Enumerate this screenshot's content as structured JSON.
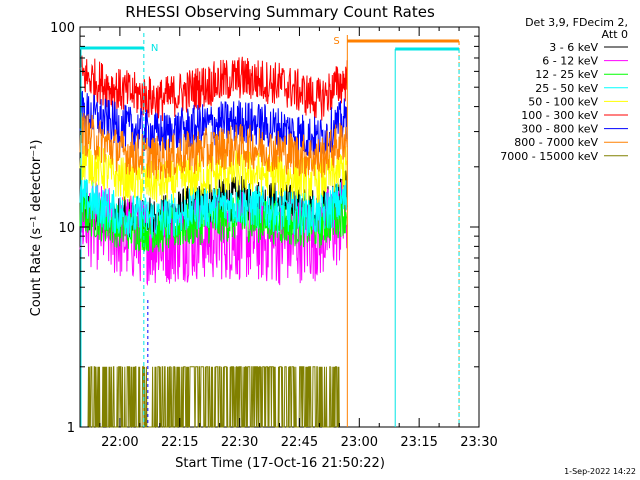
{
  "chart_data": {
    "type": "line",
    "title": "RHESSI Observing Summary Count Rates",
    "xlabel": "Start Time (17-Oct-16 21:50:22)",
    "ylabel": "Count Rate (s⁻¹ detector⁻¹)",
    "y_scale": "log",
    "ylim": [
      1,
      100
    ],
    "xlim": [
      "21:50",
      "23:30"
    ],
    "x_ticks": [
      "22:00",
      "22:15",
      "22:30",
      "22:45",
      "23:00",
      "23:15",
      "23:30"
    ],
    "y_ticks": [
      "1",
      "10",
      "100"
    ],
    "legend_header": [
      "Det 3,9, FDecim 2,",
      "Att 0"
    ],
    "legend_position": "right",
    "annotations": [
      "N",
      "S"
    ],
    "markers": {
      "N": {
        "start": "21:50",
        "end": "22:06",
        "color": "#00e5e5"
      },
      "S_eclipse_line": {
        "time": "22:57",
        "color": "#ff8000"
      },
      "S_bar": {
        "start": "22:57",
        "end": "23:25",
        "color": "#ff8000"
      },
      "N2": {
        "start": "23:09",
        "end": "23:25",
        "color": "#00e5e5"
      }
    },
    "series": [
      {
        "name": "3 - 6 keV",
        "color": "#000000",
        "x": [
          "21:50",
          "22:00",
          "22:10",
          "22:20",
          "22:30",
          "22:40",
          "22:50",
          "22:57"
        ],
        "values": [
          12,
          11,
          11,
          13,
          14,
          13,
          12,
          15
        ]
      },
      {
        "name": "6 - 12 keV",
        "color": "#ff00ff",
        "x": [
          "21:50",
          "22:00",
          "22:10",
          "22:20",
          "22:30",
          "22:40",
          "22:50",
          "22:57"
        ],
        "values": [
          11,
          9,
          8.5,
          9,
          9,
          8.5,
          9,
          11
        ]
      },
      {
        "name": "12 - 25 keV",
        "color": "#00ff00",
        "x": [
          "21:50",
          "22:00",
          "22:10",
          "22:20",
          "22:30",
          "22:40",
          "22:50",
          "22:57"
        ],
        "values": [
          12,
          10,
          9.5,
          10.5,
          11,
          10.5,
          10,
          12
        ]
      },
      {
        "name": "25 - 50 keV",
        "color": "#00ffff",
        "x": [
          "21:50",
          "22:00",
          "22:10",
          "22:20",
          "22:30",
          "22:40",
          "22:50",
          "22:57"
        ],
        "values": [
          14,
          11.5,
          11,
          12.5,
          13,
          12,
          11.5,
          14
        ]
      },
      {
        "name": "50 - 100 keV",
        "color": "#ffff00",
        "x": [
          "21:50",
          "22:00",
          "22:10",
          "22:20",
          "22:30",
          "22:40",
          "22:50",
          "22:57"
        ],
        "values": [
          22,
          17.5,
          16.5,
          18,
          19,
          18,
          17,
          20
        ]
      },
      {
        "name": "100 - 300 keV",
        "color": "#ff0000",
        "x": [
          "21:50",
          "22:00",
          "22:10",
          "22:20",
          "22:30",
          "22:40",
          "22:50",
          "22:57"
        ],
        "values": [
          58,
          48,
          43,
          50,
          56,
          52,
          43,
          55
        ]
      },
      {
        "name": "300 - 800 keV",
        "color": "#0000ff",
        "x": [
          "21:50",
          "22:00",
          "22:10",
          "22:20",
          "22:30",
          "22:40",
          "22:50",
          "22:57"
        ],
        "values": [
          38,
          32,
          29,
          32,
          34,
          31,
          27.5,
          35
        ]
      },
      {
        "name": "800 - 7000 keV",
        "color": "#ff8000",
        "x": [
          "21:50",
          "22:00",
          "22:10",
          "22:20",
          "22:30",
          "22:40",
          "22:50",
          "22:57"
        ],
        "values": [
          30,
          24,
          22,
          24,
          25.5,
          24,
          22,
          28
        ]
      },
      {
        "name": "7000 - 15000 keV",
        "color": "#808000",
        "x": [
          "21:52",
          "22:00",
          "22:05",
          "22:15",
          "22:25",
          "22:30",
          "22:35",
          "22:45",
          "22:55"
        ],
        "values": [
          2,
          2,
          1,
          1,
          2,
          2,
          2,
          1,
          2
        ]
      }
    ]
  },
  "footer": {
    "timestamp": "1-Sep-2022 14:22"
  }
}
